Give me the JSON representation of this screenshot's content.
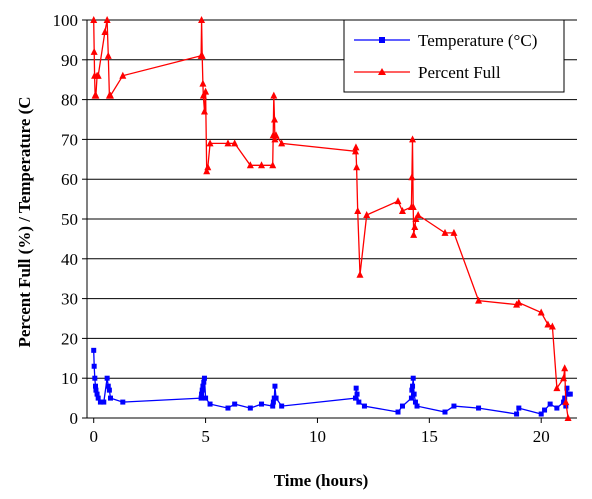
{
  "chart_data": {
    "type": "line",
    "title": "",
    "xlabel": "Time (hours)",
    "ylabel": "Percent Full (%) / Temperature (C",
    "xlim": [
      -0.3,
      21.6
    ],
    "ylim": [
      0,
      100
    ],
    "x_ticks": [
      0,
      5,
      10,
      15,
      20
    ],
    "y_ticks": [
      0,
      10,
      20,
      30,
      40,
      50,
      60,
      70,
      80,
      90,
      100
    ],
    "grid": "horizontal",
    "legend_position": "top-right",
    "series": [
      {
        "name": "Temperature (°C)",
        "color": "#0000ff",
        "marker": "square",
        "x": [
          0,
          0.02,
          0.05,
          0.08,
          0.1,
          0.15,
          0.2,
          0.3,
          0.45,
          0.6,
          0.65,
          0.7,
          0.75,
          1.3,
          4.8,
          4.82,
          4.85,
          4.88,
          4.92,
          4.95,
          5.0,
          5.2,
          6.0,
          6.3,
          7.0,
          7.5,
          8.0,
          8.03,
          8.07,
          8.1,
          8.15,
          8.4,
          11.7,
          11.73,
          11.77,
          11.85,
          12.1,
          13.6,
          13.8,
          14.2,
          14.22,
          14.25,
          14.28,
          14.32,
          14.38,
          14.45,
          15.7,
          16.1,
          17.2,
          18.9,
          19.0,
          20.0,
          20.15,
          20.4,
          20.7,
          21.0,
          21.05,
          21.1,
          21.15,
          21.2,
          21.3
        ],
        "values": [
          17,
          13,
          10,
          8,
          7,
          6,
          5,
          4,
          4,
          10,
          8,
          7,
          5,
          4,
          5,
          6,
          7,
          8,
          9,
          10,
          5,
          3.5,
          2.5,
          3.5,
          2.5,
          3.5,
          3,
          4,
          5,
          8,
          5,
          3,
          5,
          7.5,
          6,
          4,
          3,
          1.5,
          3,
          5,
          7,
          8,
          10,
          6,
          4,
          3,
          1.5,
          3,
          2.5,
          1,
          2.5,
          1,
          2,
          3.5,
          2.5,
          4,
          5,
          3,
          7.5,
          6,
          6
        ]
      },
      {
        "name": "Percent Full",
        "color": "#ff0000",
        "marker": "triangle",
        "x": [
          0,
          0.02,
          0.04,
          0.06,
          0.1,
          0.15,
          0.2,
          0.5,
          0.6,
          0.65,
          0.7,
          0.75,
          1.3,
          4.8,
          4.82,
          4.85,
          4.88,
          4.9,
          4.95,
          5.0,
          5.05,
          5.1,
          5.2,
          6.0,
          6.3,
          7.0,
          7.5,
          8.0,
          8.02,
          8.05,
          8.08,
          8.1,
          8.15,
          8.4,
          11.7,
          11.72,
          11.75,
          11.8,
          11.9,
          12.2,
          13.6,
          13.8,
          14.2,
          14.22,
          14.25,
          14.28,
          14.3,
          14.35,
          14.4,
          14.5,
          15.7,
          16.1,
          17.2,
          18.9,
          19.0,
          20.0,
          20.3,
          20.5,
          20.7,
          21.0,
          21.05,
          21.1,
          21.2
        ],
        "values": [
          100,
          92,
          86,
          81,
          81,
          86,
          86,
          97,
          100,
          91,
          81,
          81,
          86,
          91,
          100,
          91,
          84,
          81,
          77,
          82,
          62,
          63,
          69,
          69,
          69,
          63.5,
          63.5,
          63.5,
          71,
          81,
          75,
          70,
          71,
          69,
          67,
          68,
          63,
          52,
          36,
          51,
          54.5,
          52,
          53,
          60.5,
          70,
          53,
          46,
          48,
          50,
          51,
          46.5,
          46.5,
          29.5,
          28.5,
          29,
          26.5,
          23.5,
          23,
          7.5,
          10,
          12.5,
          4,
          0
        ]
      }
    ]
  }
}
